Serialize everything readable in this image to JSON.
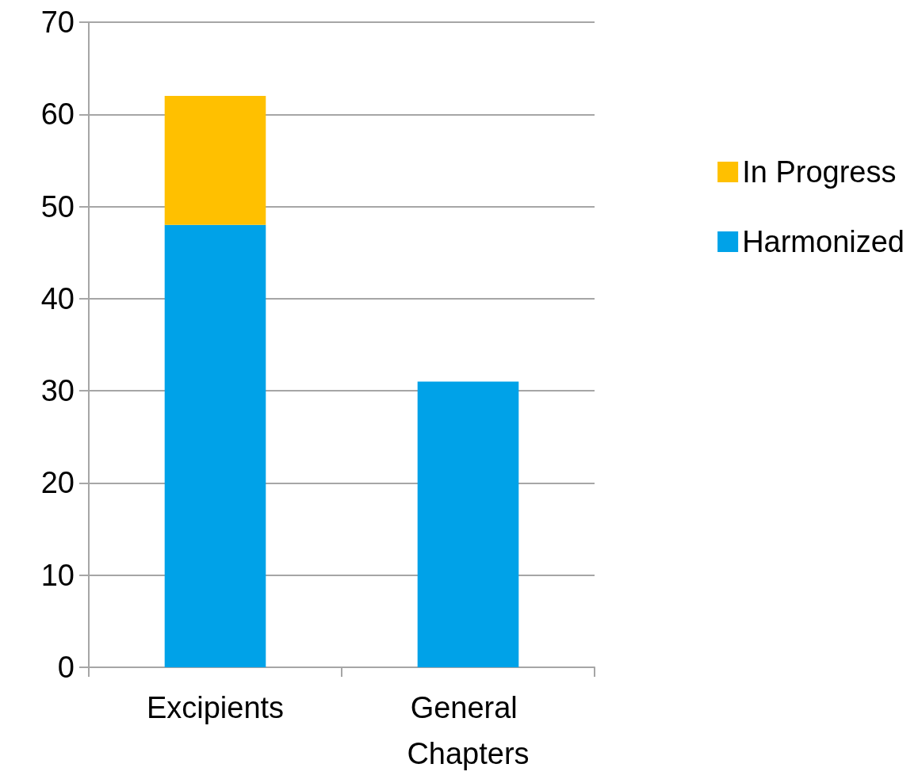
{
  "chart_data": {
    "type": "bar",
    "categories": [
      "Excipients",
      "General Chapters"
    ],
    "series": [
      {
        "name": "Harmonized",
        "color": "#00a2e8",
        "values": [
          48,
          31
        ]
      },
      {
        "name": "In Progress",
        "color": "#ffc000",
        "values": [
          14,
          0
        ]
      }
    ],
    "stacked": true,
    "ylim": [
      0,
      70
    ],
    "yticks": [
      0,
      10,
      20,
      30,
      40,
      50,
      60,
      70
    ],
    "grid": "y",
    "legend": "right"
  }
}
